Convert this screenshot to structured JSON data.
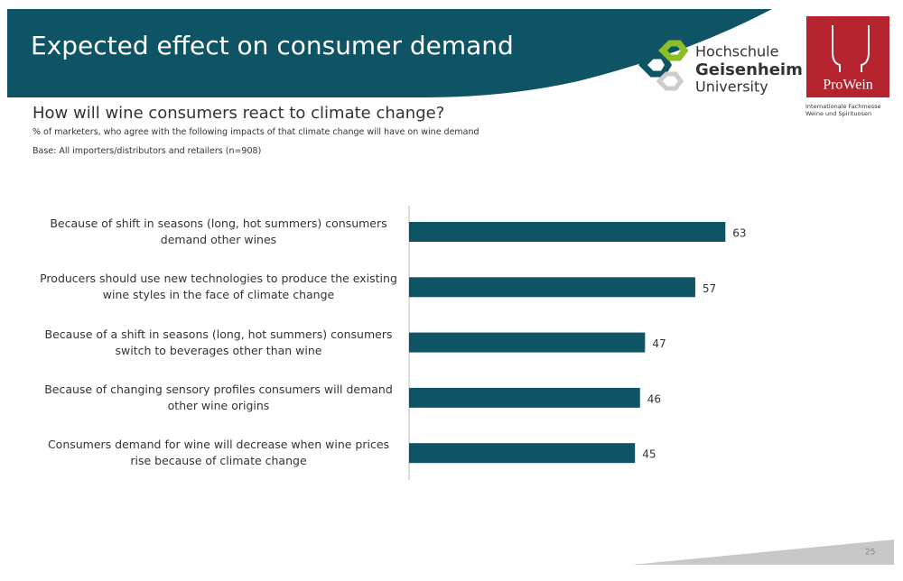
{
  "header": {
    "title": "Expected effect on consumer demand"
  },
  "logos": {
    "university": [
      "Hochschule",
      "Geisenheim",
      "University"
    ],
    "fair": "ProWein",
    "fair_tagline": [
      "Internationale Fachmesse",
      "Weine und Spirituosen"
    ]
  },
  "page_number": "25",
  "chart_data": {
    "type": "bar",
    "orientation": "horizontal",
    "title": "How will wine consumers react to climate change?",
    "subtitle": "% of marketers,  who agree with the following impacts of that climate change will have on wine demand",
    "note": "Base: All importers/distributors  and retailers  (n=908)",
    "categories": [
      "Because of shift in seasons (long, hot summers) consumers demand other wines",
      "Producers should use new technologies to produce the existing wine styles in the face of climate change",
      "Because of a shift in seasons (long, hot summers) consumers switch to beverages other than wine",
      "Because of changing sensory profiles consumers will demand other wine origins",
      "Consumers demand for wine will decrease when wine prices rise because of climate change"
    ],
    "values": [
      63,
      57,
      47,
      46,
      45
    ],
    "color": "#0f5465",
    "xlim": [
      0,
      100
    ]
  }
}
